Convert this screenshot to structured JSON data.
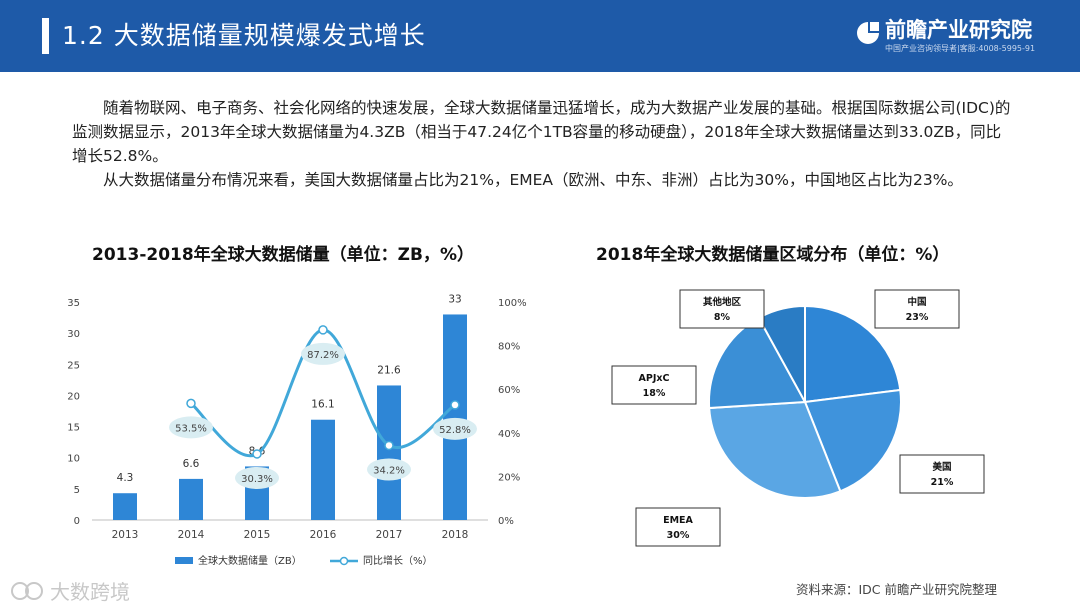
{
  "header": {
    "title": "1.2 大数据储量规模爆发式增长",
    "logo_name": "前瞻产业研究院",
    "logo_sub": "中国产业咨询领导者|客服:4008-5995-91"
  },
  "body": {
    "paragraph1": "随着物联网、电子商务、社会化网络的快速发展，全球大数据储量迅猛增长，成为大数据产业发展的基础。根据国际数据公司(IDC)的监测数据显示，2013年全球大数据储量为4.3ZB（相当于47.24亿个1TB容量的移动硬盘），2018年全球大数据储量达到33.0ZB，同比增长52.8%。",
    "paragraph2": "从大数据储量分布情况来看，美国大数据储量占比为21%，EMEA（欧洲、中东、非洲）占比为30%，中国地区占比为23%。"
  },
  "source": "资料来源：IDC 前瞻产业研究院整理",
  "watermark": "大数跨境",
  "colors": {
    "header": "#1e5aa8",
    "bar": "#2e86d6",
    "line": "#41a8d9",
    "pie": [
      "#2e86d6",
      "#3f93dc",
      "#5aa6e4",
      "#3b8fd6",
      "#2a7cc4"
    ]
  },
  "chart_data": [
    {
      "type": "bar",
      "title": "2013-2018年全球大数据储量（单位：ZB，%）",
      "categories": [
        "2013",
        "2014",
        "2015",
        "2016",
        "2017",
        "2018"
      ],
      "series": [
        {
          "name": "全球大数据储量（ZB）",
          "type": "bar",
          "axis": "left",
          "values": [
            4.3,
            6.6,
            8.6,
            16.1,
            21.6,
            33
          ],
          "labels": [
            "4.3",
            "6.6",
            "8.6",
            "16.1",
            "21.6",
            "33"
          ]
        },
        {
          "name": "同比增长（%）",
          "type": "line",
          "axis": "right",
          "x": [
            "2014",
            "2015",
            "2016",
            "2017",
            "2018"
          ],
          "values": [
            53.5,
            30.3,
            87.2,
            34.2,
            52.8
          ],
          "labels": [
            "53.5%",
            "30.3%",
            "87.2%",
            "34.2%",
            "52.8%"
          ]
        }
      ],
      "ylim": [
        0,
        35
      ],
      "yticks": [
        "0",
        "5",
        "10",
        "15",
        "20",
        "25",
        "30",
        "35"
      ],
      "y2lim": [
        0,
        100
      ],
      "y2ticks": [
        "0%",
        "20%",
        "40%",
        "60%",
        "80%",
        "100%"
      ],
      "legend": "bottom"
    },
    {
      "type": "pie",
      "title": "2018年全球大数据储量区域分布（单位：%）",
      "slices": [
        {
          "label": "中国",
          "value": 23,
          "text": "23%"
        },
        {
          "label": "美国",
          "value": 21,
          "text": "21%"
        },
        {
          "label": "EMEA",
          "value": 30,
          "text": "30%"
        },
        {
          "label": "APJxC",
          "value": 18,
          "text": "18%"
        },
        {
          "label": "其他地区",
          "value": 8,
          "text": "8%"
        }
      ]
    }
  ]
}
